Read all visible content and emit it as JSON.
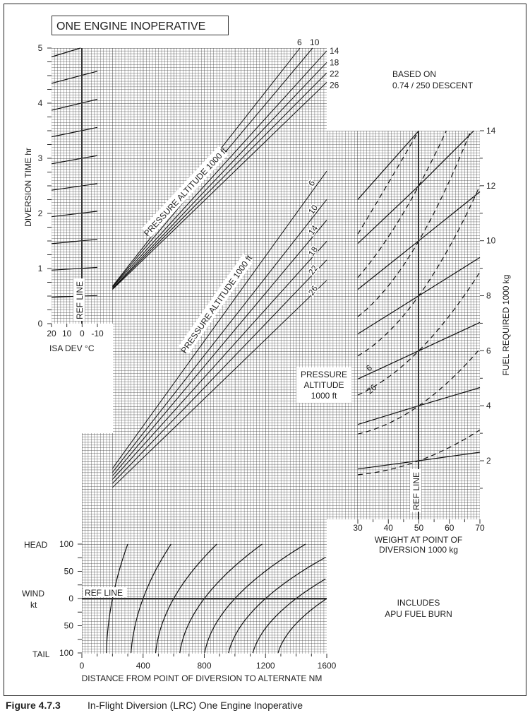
{
  "chart_data": {
    "type": "nomogram",
    "title": "ONE ENGINE INOPERATIVE",
    "caption": {
      "number": "Figure 4.7.3",
      "text": "In-Flight Diversion (LRC) One Engine Inoperative"
    },
    "notes": {
      "based_on_1": "BASED ON",
      "based_on_2": "0.74 / 250 DESCENT",
      "includes_1": "INCLUDES",
      "includes_2": "APU FUEL BURN"
    },
    "grid": true,
    "time_panel": {
      "ylabel": "DIVERSION TIME  hr",
      "ylim": [
        0,
        5
      ],
      "yticks": [
        "0",
        "1",
        "2",
        "3",
        "4",
        "5"
      ],
      "xlabel": "ISA DEV °C",
      "xlim": [
        20,
        -10
      ],
      "xticks": [
        "20",
        "10",
        "0",
        "-10"
      ],
      "ref_line_label": "REF LINE",
      "ref_line_isa": 0,
      "isa_lines": [
        [
          [
            20,
            0.48
          ],
          [
            -10,
            0.51
          ]
        ],
        [
          [
            20,
            0.97
          ],
          [
            -10,
            1.02
          ]
        ],
        [
          [
            20,
            1.45
          ],
          [
            -10,
            1.53
          ]
        ],
        [
          [
            20,
            1.94
          ],
          [
            -10,
            2.04
          ]
        ],
        [
          [
            20,
            2.42
          ],
          [
            -10,
            2.54
          ]
        ],
        [
          [
            20,
            2.9
          ],
          [
            -10,
            3.05
          ]
        ],
        [
          [
            20,
            3.39
          ],
          [
            -10,
            3.56
          ]
        ],
        [
          [
            20,
            3.87
          ],
          [
            -10,
            4.07
          ]
        ],
        [
          [
            20,
            4.36
          ],
          [
            -10,
            4.58
          ]
        ],
        [
          [
            20,
            4.84
          ],
          [
            1,
            5.0
          ]
        ]
      ]
    },
    "time_vs_distance": {
      "label": "PRESSURE ALTITUDE  1000 ft",
      "units": [
        "distance NM",
        "time hr"
      ],
      "series": [
        {
          "name": "6",
          "points": [
            [
              200,
              0.68
            ],
            [
              1425,
              5.0
            ]
          ]
        },
        {
          "name": "10",
          "points": [
            [
              200,
              0.67
            ],
            [
              1508,
              5.0
            ]
          ]
        },
        {
          "name": "14",
          "points": [
            [
              200,
              0.66
            ],
            [
              1600,
              4.95
            ]
          ]
        },
        {
          "name": "18",
          "points": [
            [
              200,
              0.64
            ],
            [
              1600,
              4.74
            ]
          ]
        },
        {
          "name": "22",
          "points": [
            [
              200,
              0.63
            ],
            [
              1600,
              4.55
            ]
          ]
        },
        {
          "name": "26",
          "points": [
            [
              200,
              0.62
            ],
            [
              1600,
              4.38
            ]
          ]
        }
      ]
    },
    "fuel_vs_distance": {
      "label": "PRESSURE ALTITUDE  1000 ft",
      "units": [
        "distance NM",
        "fuel 1000 kg"
      ],
      "series": [
        {
          "name": "6",
          "points": [
            [
              200,
              1.72
            ],
            [
              1600,
              12.53
            ]
          ]
        },
        {
          "name": "10",
          "points": [
            [
              200,
              1.58
            ],
            [
              1600,
              11.5
            ]
          ]
        },
        {
          "name": "14",
          "points": [
            [
              200,
              1.45
            ],
            [
              1600,
              10.75
            ]
          ]
        },
        {
          "name": "18",
          "points": [
            [
              200,
              1.32
            ],
            [
              1600,
              9.98
            ]
          ]
        },
        {
          "name": "22",
          "points": [
            [
              200,
              1.18
            ],
            [
              1600,
              9.3
            ]
          ]
        },
        {
          "name": "26",
          "points": [
            [
              200,
              1.03
            ],
            [
              1600,
              8.56
            ]
          ]
        }
      ]
    },
    "weight_panel": {
      "xlabel_1": "WEIGHT AT POINT OF",
      "xlabel_2": "DIVERSION   1000 kg",
      "xlim": [
        30,
        70
      ],
      "xticks": [
        "30",
        "40",
        "50",
        "60",
        "70"
      ],
      "ylabel": "FUEL REQUIRED   1000 kg",
      "ylim": [
        0,
        14
      ],
      "yticks": [
        "2",
        "4",
        "6",
        "8",
        "10",
        "12",
        "14"
      ],
      "ref_line_label": "REF LINE",
      "ref_line_weight": 50,
      "legend_title_1": "PRESSURE",
      "legend_title_2": "ALTITUDE",
      "legend_title_3": "1000 ft",
      "solid_label": "6",
      "dashed_label": "26",
      "solid_lines": [
        [
          [
            30,
            1.7
          ],
          [
            50,
            2
          ],
          [
            70,
            2.31
          ]
        ],
        [
          [
            30,
            3.32
          ],
          [
            50,
            4
          ],
          [
            70,
            4.66
          ]
        ],
        [
          [
            30,
            4.97
          ],
          [
            50,
            6
          ],
          [
            70,
            7.03
          ]
        ],
        [
          [
            30,
            6.61
          ],
          [
            50,
            8
          ],
          [
            70,
            9.39
          ]
        ],
        [
          [
            30,
            8.23
          ],
          [
            50,
            10
          ],
          [
            70,
            11.78
          ]
        ],
        [
          [
            30,
            9.9
          ],
          [
            50,
            12
          ],
          [
            68,
            14
          ]
        ],
        [
          [
            30,
            11.5
          ],
          [
            50,
            14
          ]
        ]
      ],
      "dashed_lines": [
        [
          [
            30,
            1.49
          ],
          [
            50,
            2
          ],
          [
            70,
            3.12
          ]
        ],
        [
          [
            30,
            2.97
          ],
          [
            50,
            4
          ],
          [
            70,
            6.07
          ]
        ],
        [
          [
            30,
            4.39
          ],
          [
            50,
            6
          ],
          [
            70,
            8.86
          ]
        ],
        [
          [
            30,
            5.81
          ],
          [
            50,
            8
          ],
          [
            70,
            12.0
          ]
        ],
        [
          [
            30,
            7.24
          ],
          [
            50,
            10
          ],
          [
            67,
            14
          ]
        ],
        [
          [
            30,
            8.66
          ],
          [
            50,
            12
          ],
          [
            59,
            14
          ]
        ],
        [
          [
            30,
            10.24
          ],
          [
            40,
            12.1
          ],
          [
            50,
            14
          ]
        ]
      ]
    },
    "wind_panel": {
      "xlabel": "DISTANCE FROM POINT OF DIVERSION TO ALTERNATE  NM",
      "xlim": [
        0,
        1600
      ],
      "xticks": [
        "0",
        "400",
        "800",
        "1200",
        "1600"
      ],
      "ylabel_head": "HEAD",
      "ylabel_wind": "WIND",
      "ylabel_unit": "kt",
      "ylabel_tail": "TAIL",
      "ylim": [
        -100,
        100
      ],
      "yticks": [
        "100",
        "50",
        "0",
        "50",
        "100"
      ],
      "ref_line_label": "REF LINE",
      "curves": [
        [
          [
            -100,
            160
          ],
          [
            0,
            200
          ],
          [
            100,
            300
          ]
        ],
        [
          [
            -100,
            321
          ],
          [
            0,
            400
          ],
          [
            100,
            583
          ]
        ],
        [
          [
            -100,
            482
          ],
          [
            0,
            600
          ],
          [
            100,
            882
          ]
        ],
        [
          [
            -100,
            640
          ],
          [
            0,
            800
          ],
          [
            100,
            1178
          ]
        ],
        [
          [
            -100,
            802
          ],
          [
            0,
            1000
          ],
          [
            100,
            1462
          ]
        ],
        [
          [
            -100,
            958
          ],
          [
            0,
            1200
          ],
          [
            100,
            1755
          ]
        ],
        [
          [
            -100,
            1117
          ],
          [
            0,
            1400
          ],
          [
            100,
            2050
          ]
        ],
        [
          [
            -100,
            1282
          ],
          [
            0,
            1600
          ],
          [
            100,
            2345
          ]
        ]
      ]
    }
  }
}
